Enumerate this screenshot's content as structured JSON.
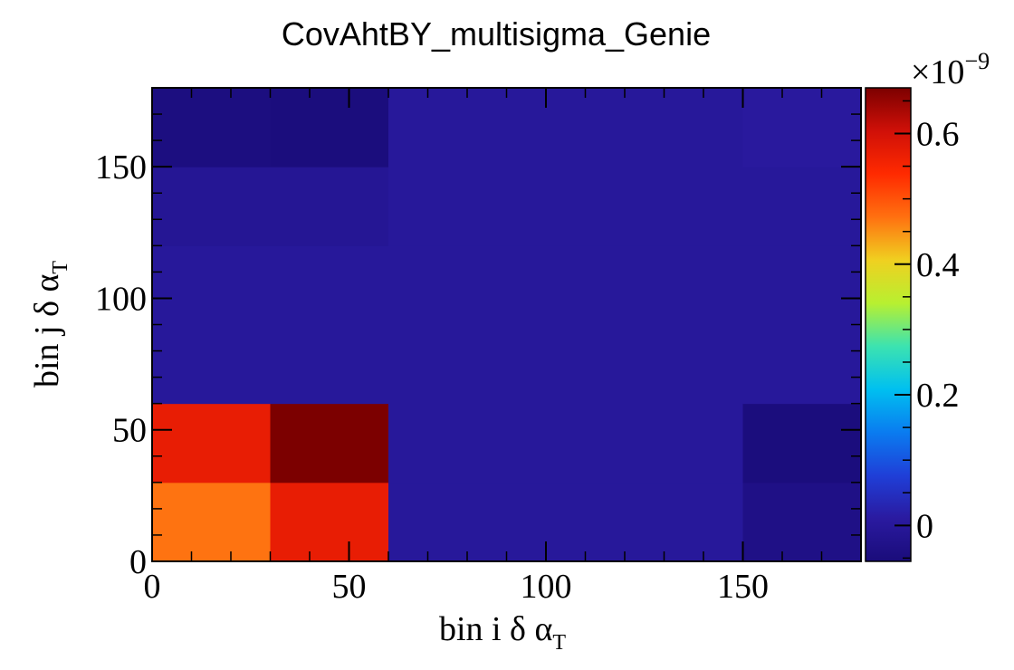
{
  "chart_data": {
    "type": "heatmap",
    "title": "CovAhtBY_multisigma_Genie",
    "xlabel": {
      "main": "bin i δ α",
      "sub": "T"
    },
    "ylabel": {
      "main": "bin j δ α",
      "sub": "T"
    },
    "xlim": [
      0,
      180
    ],
    "ylim": [
      0,
      180
    ],
    "x_edges": [
      0,
      30,
      60,
      90,
      120,
      150,
      180
    ],
    "y_edges": [
      0,
      30,
      60,
      90,
      120,
      150,
      180
    ],
    "x_ticks": [
      0,
      50,
      100,
      150
    ],
    "y_ticks": [
      0,
      50,
      100,
      150
    ],
    "values_e9": [
      [
        0.47,
        0.57,
        0.0,
        0.0,
        -0.01,
        -0.045
      ],
      [
        0.57,
        0.67,
        0.0,
        0.0,
        -0.01,
        -0.05
      ],
      [
        0.0,
        0.0,
        0.0,
        0.0,
        0.0,
        0.0
      ],
      [
        0.0,
        0.0,
        0.0,
        0.0,
        0.0,
        0.0
      ],
      [
        0.0,
        0.0,
        0.0,
        0.0,
        0.0,
        0.0
      ],
      [
        -0.035,
        -0.05,
        0.0,
        0.0,
        0.0,
        0.005
      ]
    ],
    "colorbar": {
      "range": [
        -0.055,
        0.67
      ],
      "ticks": [
        0,
        0.2,
        0.4,
        0.6
      ],
      "tick_labels": [
        "0",
        "0.2",
        "0.4",
        "0.6"
      ],
      "exponent_label": "×10",
      "exponent_power": "−9"
    },
    "palette": [
      "#1a0c7a",
      "#2a1aa0",
      "#1f3fd8",
      "#0a7cf0",
      "#00c0f0",
      "#3ce3b0",
      "#b8f030",
      "#f0d020",
      "#ff7010",
      "#ff2a00",
      "#d01008",
      "#7c0000"
    ],
    "grid": false
  }
}
